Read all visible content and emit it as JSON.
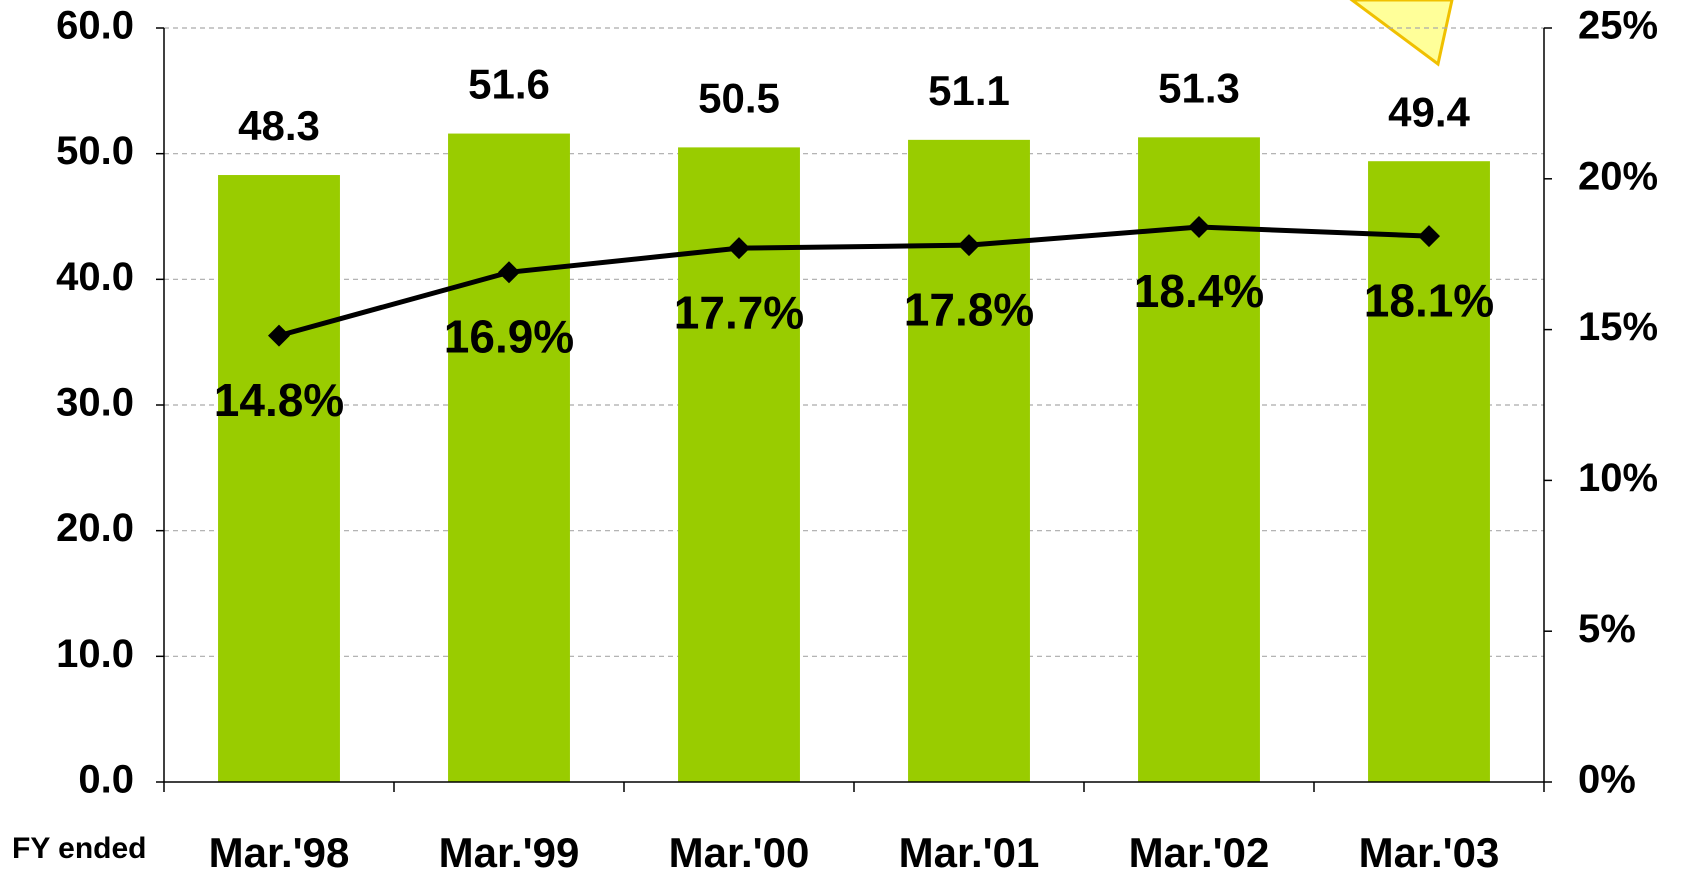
{
  "chart_data": {
    "type": "bar_line",
    "x_label": "FY ended",
    "categories": [
      "Mar.'98",
      "Mar.'99",
      "Mar.'00",
      "Mar.'01",
      "Mar.'02",
      "Mar.'03"
    ],
    "series": [
      {
        "type": "bar",
        "color": "#99cc00",
        "values": [
          48.3,
          51.6,
          50.5,
          51.1,
          51.3,
          49.4
        ]
      },
      {
        "type": "line",
        "axis": "y2",
        "color": "#000000",
        "values": [
          14.8,
          16.9,
          17.7,
          17.8,
          18.4,
          18.1
        ],
        "value_labels": [
          "14.8%",
          "16.9%",
          "17.7%",
          "17.8%",
          "18.4%",
          "18.1%"
        ]
      }
    ],
    "ylim": [
      0,
      60
    ],
    "yticks": [
      {
        "value": 0,
        "label": "0.0"
      },
      {
        "value": 10,
        "label": "10.0"
      },
      {
        "value": 20,
        "label": "20.0"
      },
      {
        "value": 30,
        "label": "30.0"
      },
      {
        "value": 40,
        "label": "40.0"
      },
      {
        "value": 50,
        "label": "50.0"
      },
      {
        "value": 60,
        "label": "60.0"
      }
    ],
    "y2lim": [
      0,
      25
    ],
    "y2ticks": [
      {
        "value": 0,
        "label": "0%"
      },
      {
        "value": 5,
        "label": "5%"
      },
      {
        "value": 10,
        "label": "10%"
      },
      {
        "value": 15,
        "label": "15%"
      },
      {
        "value": 20,
        "label": "20%"
      },
      {
        "value": 25,
        "label": "25%"
      }
    ],
    "grid": true
  }
}
